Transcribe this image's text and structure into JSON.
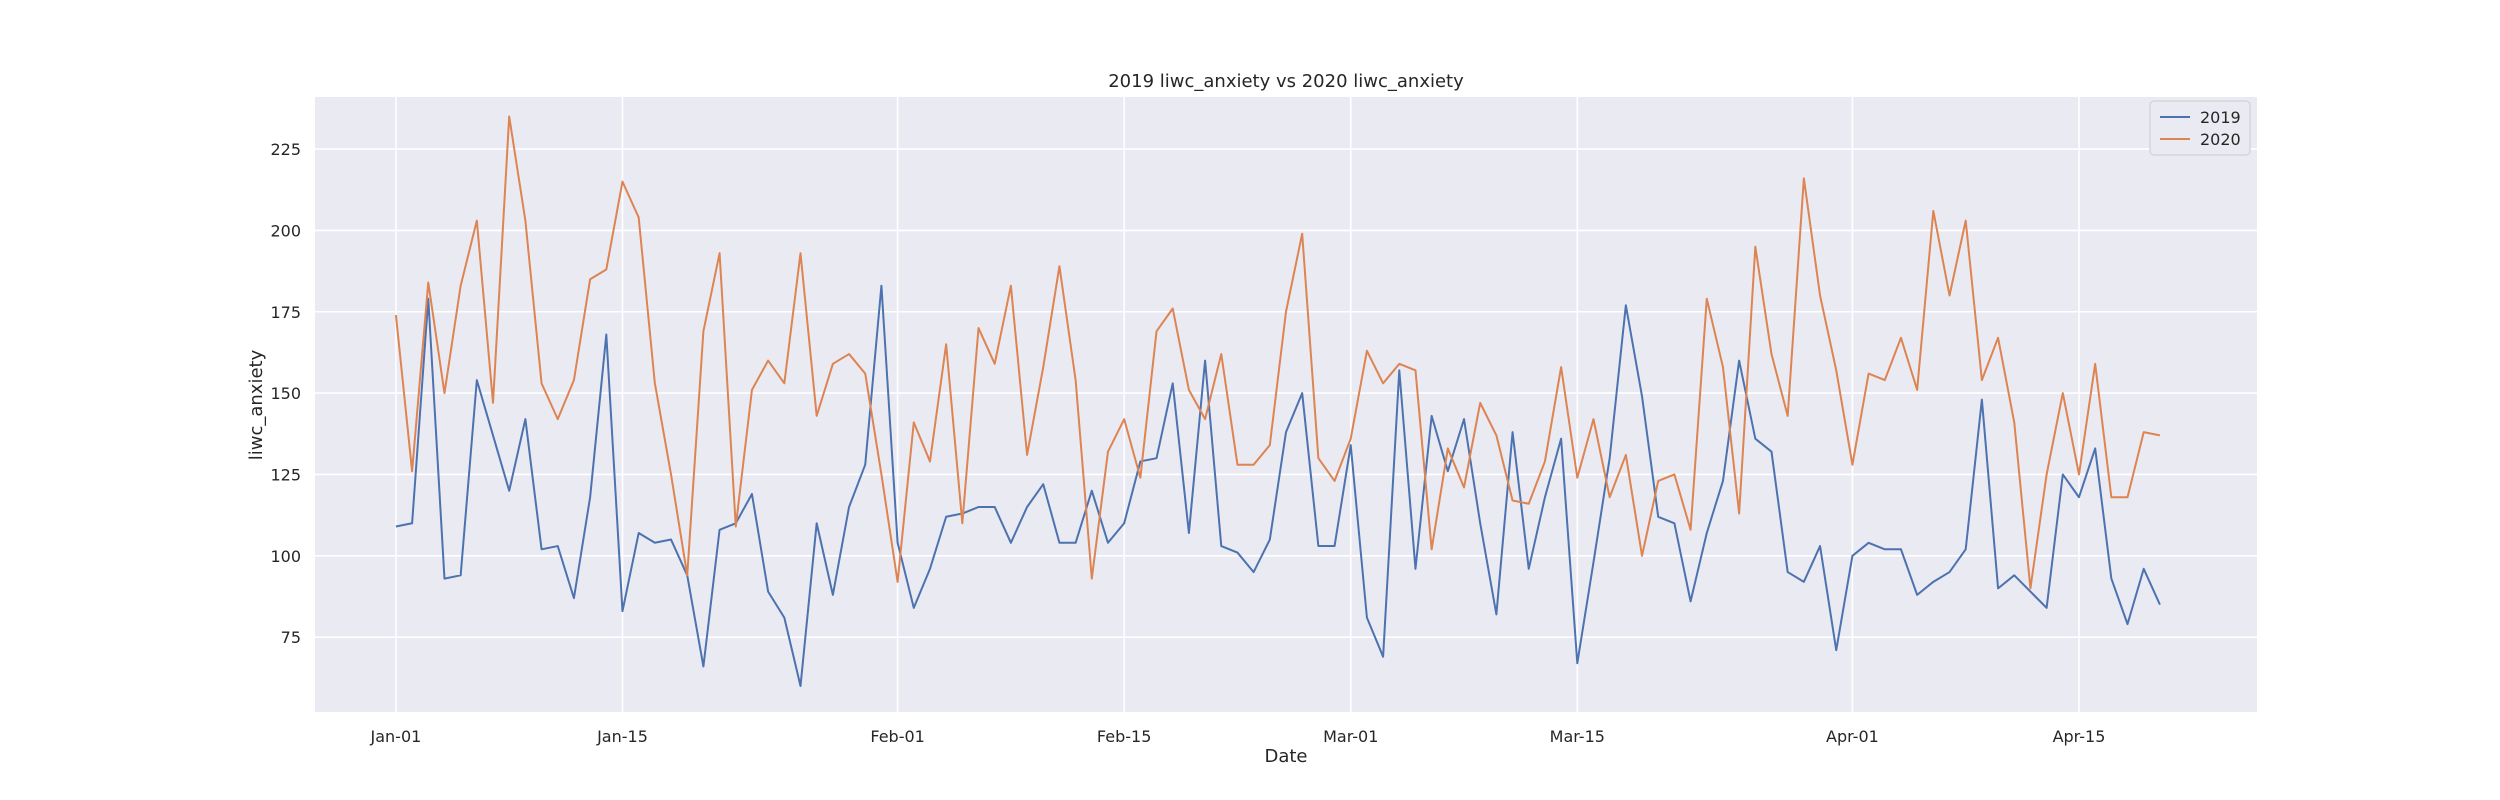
{
  "chart_data": {
    "type": "line",
    "title": "2019 liwc_anxiety vs 2020 liwc_anxiety",
    "xlabel": "Date",
    "ylabel": "liwc_anxiety",
    "x_start": "Jan-01",
    "x_ticks": [
      {
        "label": "Jan-01",
        "day": 0
      },
      {
        "label": "Jan-15",
        "day": 14
      },
      {
        "label": "Feb-01",
        "day": 31
      },
      {
        "label": "Feb-15",
        "day": 45
      },
      {
        "label": "Mar-01",
        "day": 59
      },
      {
        "label": "Mar-15",
        "day": 73
      },
      {
        "label": "Apr-01",
        "day": 90
      },
      {
        "label": "Apr-15",
        "day": 104
      }
    ],
    "y_ticks": [
      75,
      100,
      125,
      150,
      175,
      200,
      225
    ],
    "ylim": [
      52,
      241
    ],
    "xlim_days": [
      -5,
      115
    ],
    "grid": true,
    "legend_position": "top-right",
    "series": [
      {
        "name": "2019",
        "color": "#4c72b0",
        "values": [
          109,
          110,
          179,
          93,
          94,
          154,
          137,
          120,
          142,
          102,
          103,
          87,
          118,
          168,
          83,
          107,
          104,
          105,
          94,
          66,
          108,
          110,
          119,
          89,
          81,
          60,
          110,
          88,
          115,
          128,
          183,
          104,
          84,
          96,
          112,
          113,
          115,
          115,
          104,
          115,
          122,
          104,
          104,
          120,
          104,
          110,
          129,
          130,
          153,
          107,
          160,
          103,
          101,
          95,
          105,
          138,
          150,
          103,
          103,
          134,
          81,
          69,
          157,
          96,
          143,
          126,
          142,
          110,
          82,
          138,
          96,
          118,
          136,
          67,
          98,
          130,
          177,
          149,
          112,
          110,
          86,
          107,
          123,
          160,
          136,
          132,
          95,
          92,
          103,
          71,
          100,
          104,
          102,
          102,
          88,
          92,
          95,
          102,
          148,
          90,
          94,
          89,
          84,
          125,
          118,
          133,
          93,
          79,
          96,
          85
        ]
      },
      {
        "name": "2020",
        "color": "#dd8452",
        "values": [
          174,
          126,
          184,
          150,
          183,
          203,
          147,
          235,
          203,
          153,
          142,
          154,
          185,
          188,
          215,
          204,
          153,
          125,
          94,
          169,
          193,
          109,
          151,
          160,
          153,
          193,
          143,
          159,
          162,
          156,
          125,
          92,
          141,
          129,
          165,
          110,
          170,
          159,
          183,
          131,
          158,
          189,
          154,
          93,
          132,
          142,
          124,
          169,
          176,
          151,
          142,
          162,
          128,
          128,
          134,
          175,
          199,
          130,
          123,
          136,
          163,
          153,
          159,
          157,
          102,
          133,
          121,
          147,
          137,
          117,
          116,
          129,
          158,
          124,
          142,
          118,
          131,
          100,
          123,
          125,
          108,
          179,
          158,
          113,
          195,
          162,
          143,
          216,
          180,
          157,
          128,
          156,
          154,
          167,
          151,
          206,
          180,
          203,
          154,
          167,
          141,
          90,
          125,
          150,
          125,
          159,
          118,
          118,
          138,
          137
        ]
      }
    ]
  }
}
